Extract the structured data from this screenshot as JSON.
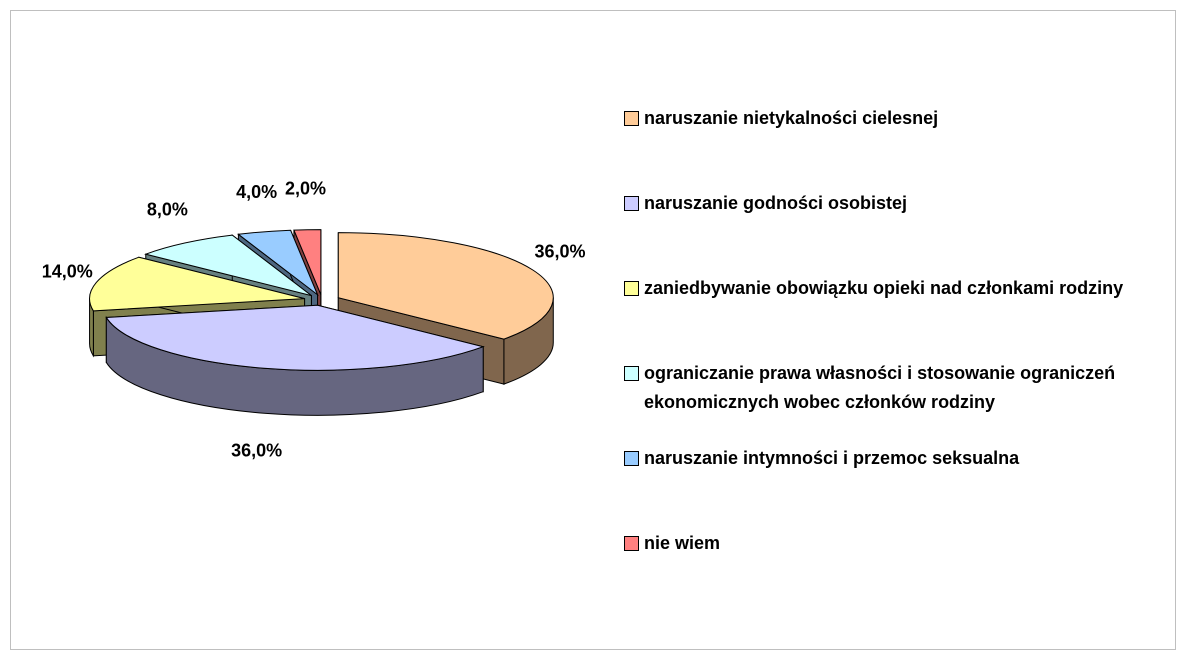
{
  "chart_data": {
    "type": "pie",
    "categories": [
      "naruszanie nietykalności cielesnej",
      "naruszanie godności osobistej",
      "zaniedbywanie obowiązku opieki nad członkami rodziny",
      "ograniczanie prawa własności i stosowanie ograniczeń ekonomicznych wobec członków rodziny",
      "naruszanie intymności i przemoc seksualna",
      "nie wiem"
    ],
    "values": [
      36,
      36,
      14,
      8,
      4,
      2
    ],
    "value_labels": [
      "36,0%",
      "36,0%",
      "14,0%",
      "8,0%",
      "4,0%",
      "2,0%"
    ],
    "colors": [
      "#FFCC99",
      "#CCCCFF",
      "#FFFF99",
      "#CCFFFF",
      "#99CCFF",
      "#FF8080"
    ],
    "legend": "right"
  }
}
